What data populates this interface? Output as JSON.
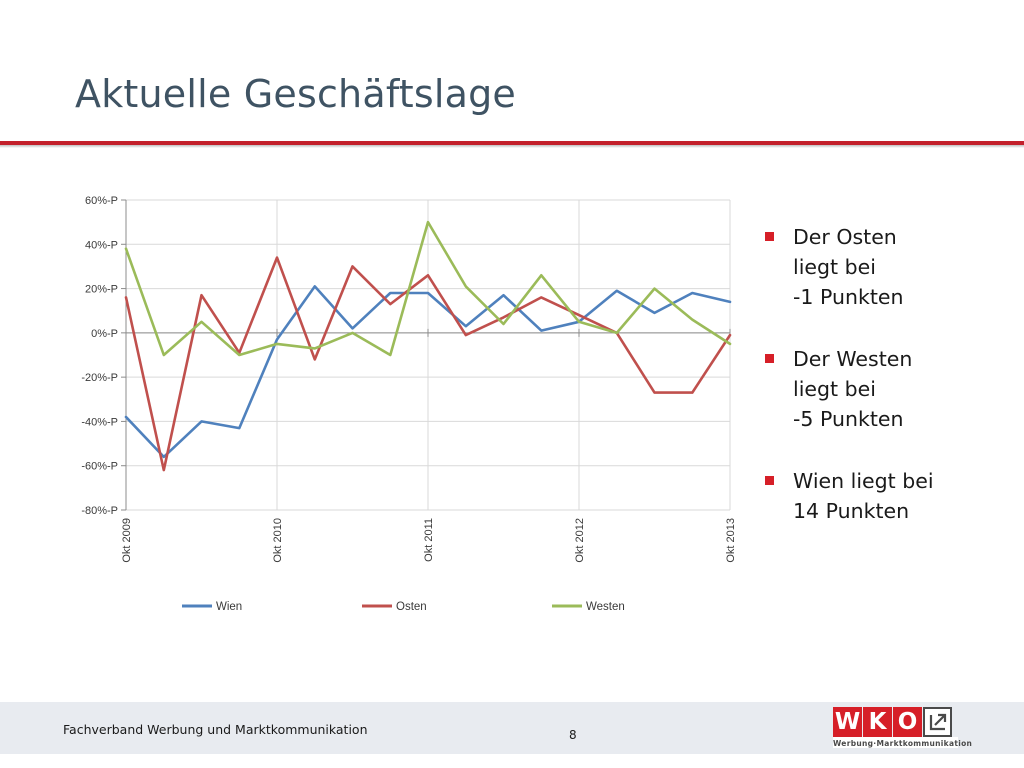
{
  "slide": {
    "title": "Aktuelle Geschäftslage"
  },
  "bullets": [
    {
      "lines": [
        "Der Osten",
        "liegt bei",
        "-1 Punkten"
      ]
    },
    {
      "lines": [
        "Der Westen",
        "liegt bei",
        "-5 Punkten"
      ]
    },
    {
      "lines": [
        "Wien liegt bei",
        "14 Punkten"
      ]
    }
  ],
  "footer": {
    "text": "Fachverband Werbung und Marktkommunikation",
    "page_number": "8",
    "logo_letters": [
      "W",
      "K",
      "O"
    ],
    "logo_tagline": "Werbung·Marktkommunikation"
  },
  "colors": {
    "title": "#3f5363",
    "accent_red": "#d61f28",
    "footer_bg": "#e8ebf0",
    "wien": "#4f81bd",
    "osten": "#c0504d",
    "westen": "#9bbb59"
  },
  "chart_data": {
    "type": "line",
    "title": "",
    "xlabel": "",
    "ylabel": "",
    "ylim": [
      -80,
      60
    ],
    "y_ticks": [
      60,
      40,
      20,
      0,
      -20,
      -40,
      -60,
      -80
    ],
    "y_tick_labels": [
      "60%-P",
      "40%-P",
      "20%-P",
      "0%-P",
      "-20%-P",
      "-40%-P",
      "-60%-P",
      "-80%-P"
    ],
    "x_labels": [
      "Okt 2009",
      "Okt 2010",
      "Okt 2011",
      "Okt 2012",
      "Okt 2013"
    ],
    "x_label_indices": [
      0,
      4,
      8,
      12,
      16
    ],
    "points_per_series": 17,
    "grid": true,
    "legend_position": "bottom",
    "series": [
      {
        "name": "Wien",
        "color": "#4f81bd",
        "values": [
          -38,
          -56,
          -40,
          -43,
          -3,
          21,
          2,
          18,
          18,
          3,
          17,
          1,
          5,
          19,
          9,
          18,
          14
        ]
      },
      {
        "name": "Osten",
        "color": "#c0504d",
        "values": [
          16,
          -62,
          17,
          -9,
          34,
          -12,
          30,
          13,
          26,
          -1,
          7,
          16,
          8,
          0,
          -27,
          -27,
          -1
        ]
      },
      {
        "name": "Westen",
        "color": "#9bbb59",
        "values": [
          38,
          -10,
          5,
          -10,
          -5,
          -7,
          0,
          -10,
          50,
          21,
          4,
          26,
          5,
          0,
          20,
          6,
          -5
        ]
      }
    ]
  }
}
